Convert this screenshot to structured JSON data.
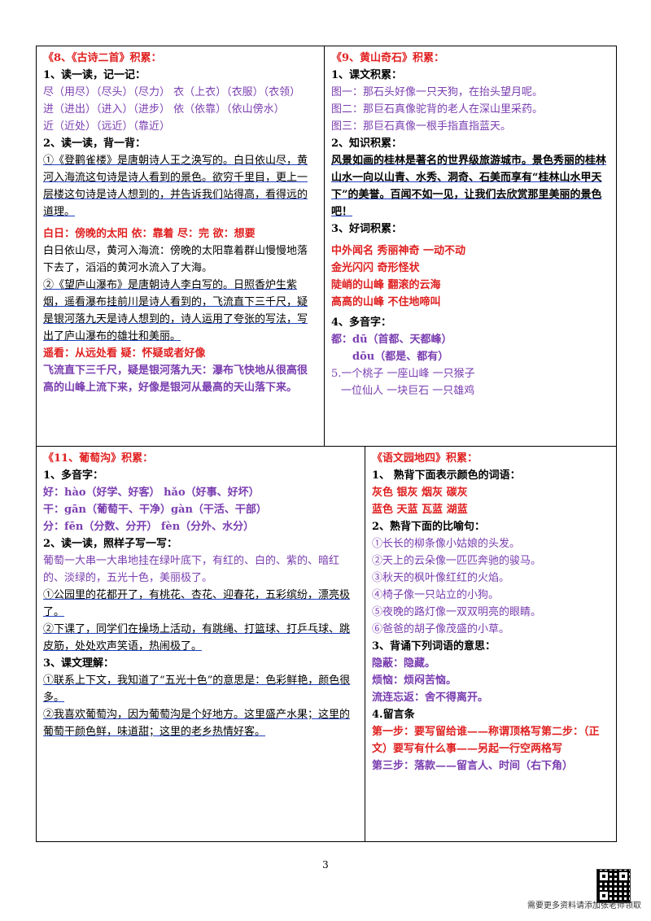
{
  "cell1": {
    "title": "《8、《古诗二首》积累：",
    "h1": "1、读一读，记一记：",
    "rows": [
      "尽（用尽）（尽头）（尽力）  衣（上衣）（衣服）（衣领）",
      "进（进出）（进入）（进步）  依（依靠）（依山傍水）",
      "近（近处）（远近）（靠近）"
    ],
    "h2": "2、读一读，背一背：",
    "p1": "①《登鹳雀楼》是唐朝诗人王之涣写的。白日依山尽，黄河入海流这句诗是诗人看到的景色。欲穷千里目，更上一层楼这句诗是诗人想到的，并告诉我们站得高，看得远的道理。",
    "words1": "白日：傍晚的太阳   依：靠着   尽：完   欲：想要",
    "expl1": "白日依山尽，黄河入海流：傍晚的太阳靠着群山慢慢地落下去了，滔滔的黄河水流入了大海。",
    "p2": "②《望庐山瀑布》是唐朝诗人李白写的。日照香炉生紫烟，遥看瀑布挂前川是诗人看到的，飞流直下三千尺，疑是银河落九天是诗人想到的，诗人运用了夸张的写法，写出了庐山瀑布的雄壮和美丽。",
    "words2": "遥看：从远处看   疑：怀疑或者好像",
    "expl2": "飞流直下三千尺，疑是银河落九天：瀑布飞快地从很高很高的山峰上流下来，好像是银河从最高的天山落下来。"
  },
  "cell2": {
    "title": "《9、黄山奇石》积累：",
    "h1": "1、课文积累：",
    "pics": [
      "图一：那石头好像一只天狗，在抬头望月呢。",
      "图二：那巨石真像驼背的老人在深山里采药。",
      "图三：那巨石真像一根手指直指蓝天。"
    ],
    "h2": "2、知识积累：",
    "p1": "风景如画的桂林是著名的世界级旅游城市。景色秀丽的桂林山水一向以山青、水秀、洞奇、石美而享有“桂林山水甲天下”的美誉。百闻不如一见，让我们去欣赏那里美丽的景色吧！",
    "h3": "3、好词积累：",
    "words": [
      "中外闻名    秀丽神奇    一动不动",
      "金光闪闪    奇形怪状",
      "陡峭的山峰    翻滚的云海",
      "高高的山峰    不住地啼叫"
    ],
    "h4": "4、多音字：",
    "poly1": "都：dū（首都、天都峰）",
    "poly2": "dōu（都是、都有）",
    "q1": "5.一个桃子  一座山峰  一只猴子",
    "q2": "一位仙人  一块巨石    一只雄鸡"
  },
  "cell3": {
    "title": "《11、葡萄沟》积累：",
    "h1": "1、多音字：",
    "poly": [
      "好：hào（好学、好客）   hǎo（好事、好坏）",
      "干：gān（葡萄干、干净）gàn（干活、干部）",
      "分：fēn（分数、分开）   fèn（分外、水分）"
    ],
    "h2": "2、读一读，照样子写一写：",
    "p1": "葡萄一大串一大串地挂在绿叶底下，有红的、白的、紫的、暗红的、淡绿的，五光十色，美丽极了。",
    "p2": "①公园里的花都开了，有桃花、杏花、迎春花，五彩缤纷，漂亮极了。",
    "p3": "②下课了，同学们在操场上活动，有跳绳、打篮球、打乒乓球、跳皮筋，处处欢声笑语，热闹极了。",
    "h3": "3、课文理解：",
    "p4": "①联系上下文，我知道了“五光十色”的意思是：色彩鲜艳，颜色很多。",
    "p5": "②我喜欢葡萄沟，因为葡萄沟是个好地方。这里盛产水果；这里的葡萄干颜色鲜，味道甜；这里的老乡热情好客。"
  },
  "cell4": {
    "title": "《语文园地四》积累：",
    "h1": "1、 熟背下面表示颜色的词语：",
    "colors1": "灰色    银灰    烟灰    碳灰",
    "colors2": "蓝色    天蓝    瓦蓝    湖蓝",
    "h2": "2、熟背下面的比喻句：",
    "sim": [
      "①长长的柳条像小姑娘的头发。",
      "②天上的云朵像一匹匹奔驰的骏马。",
      "③秋天的枫叶像红红的火焰。",
      "④椅子像一只站立的小狗。",
      "⑤夜晚的路灯像一双双明亮的眼睛。",
      "⑥爸爸的胡子像茂盛的小草。"
    ],
    "h3": "3、背诵下列词语的意思：",
    "mean": [
      "隐蔽：隐藏。",
      "烦恼：烦闷苦恼。",
      "流连忘返：舍不得离开。"
    ],
    "h4": "4.留言条",
    "steps": "第一步：要写留给谁——称谓顶格写第二步：（正文）要写有什么事——另起一行空两格写",
    "step3": "第三步：落款——留言人、时间（右下角）"
  },
  "page_number": "3",
  "footer": "需要更多资料请添加张老师领取"
}
